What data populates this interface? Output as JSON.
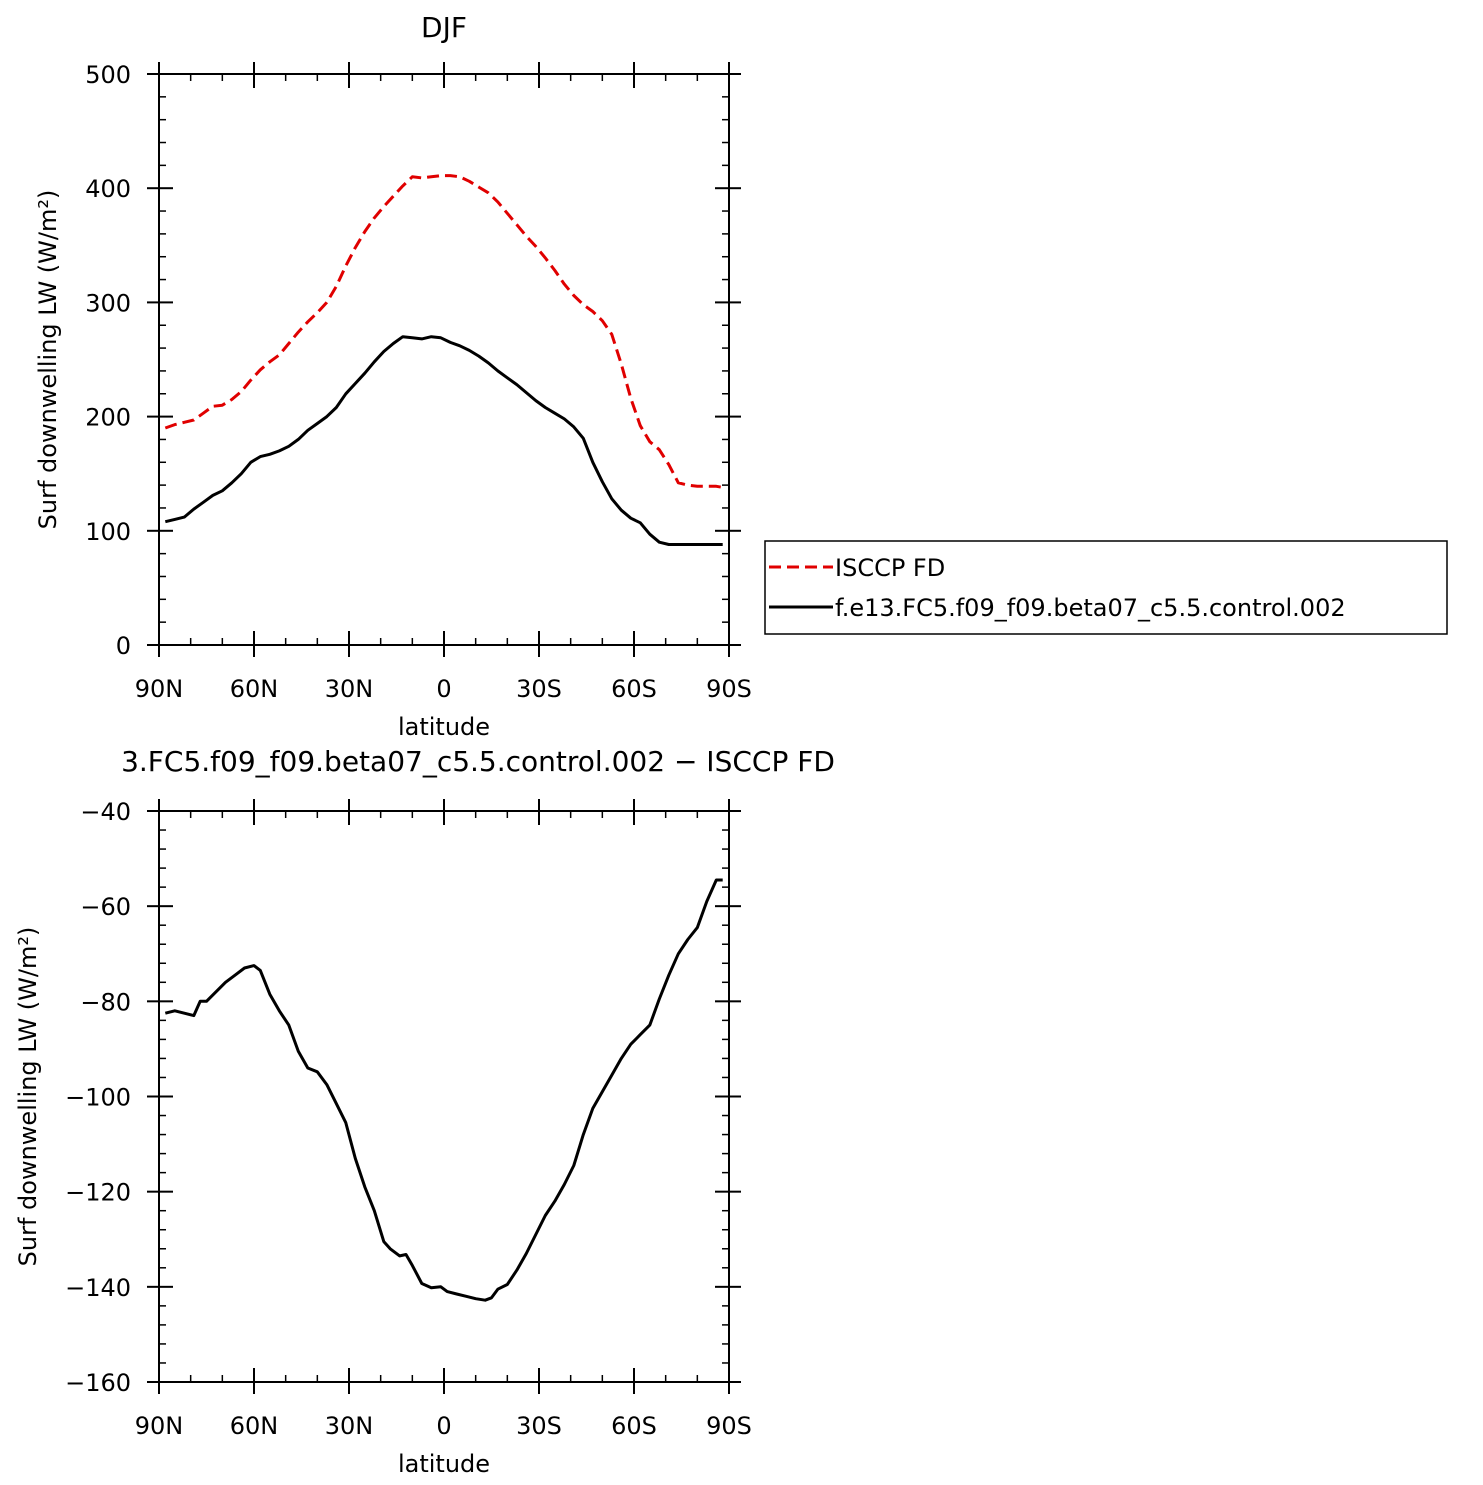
{
  "chart_data": [
    {
      "type": "line",
      "title": "DJF",
      "xlabel": "latitude",
      "ylabel": "Surf downwelling LW (W/m²)",
      "xlim": [
        -90,
        90
      ],
      "ylim": [
        0,
        500
      ],
      "x_ticks": [
        -90,
        -60,
        -30,
        0,
        30,
        60,
        90
      ],
      "x_tick_labels": [
        "90N",
        "60N",
        "30N",
        "0",
        "30S",
        "60S",
        "90S"
      ],
      "y_ticks": [
        0,
        100,
        200,
        300,
        400,
        500
      ],
      "y_tick_labels": [
        "0",
        "100",
        "200",
        "300",
        "400",
        "500"
      ],
      "legend_position": "right",
      "grid": false,
      "series": [
        {
          "name": "ISCCP FD",
          "color": "#e00000",
          "style": "dashed",
          "x": [
            -88,
            -85,
            -82,
            -79,
            -76,
            -73,
            -70,
            -67,
            -64,
            -61,
            -58,
            -55,
            -52,
            -49,
            -46,
            -43,
            -40,
            -37,
            -34,
            -31,
            -28,
            -25,
            -22,
            -19,
            -16,
            -13,
            -10,
            -7,
            -4,
            -1,
            2,
            5,
            8,
            11,
            14,
            17,
            20,
            23,
            26,
            29,
            32,
            35,
            38,
            41,
            44,
            47,
            50,
            53,
            56,
            59,
            62,
            65,
            68,
            71,
            74,
            77,
            80,
            83,
            86,
            88
          ],
          "y": [
            190,
            193,
            195,
            197,
            203,
            209,
            210,
            215,
            222,
            232,
            241,
            248,
            254,
            264,
            274,
            283,
            291,
            300,
            314,
            332,
            348,
            362,
            374,
            384,
            393,
            402,
            410,
            409,
            410,
            411,
            411,
            410,
            406,
            401,
            396,
            388,
            378,
            368,
            358,
            349,
            339,
            328,
            316,
            306,
            298,
            292,
            284,
            272,
            246,
            216,
            192,
            178,
            171,
            158,
            142,
            140,
            139,
            139,
            139,
            138
          ]
        },
        {
          "name": "f.e13.FC5.f09_f09.beta07_c5.5.control.002",
          "color": "#000000",
          "style": "solid",
          "x": [
            -88,
            -85,
            -82,
            -79,
            -76,
            -73,
            -70,
            -67,
            -64,
            -61,
            -58,
            -55,
            -52,
            -49,
            -46,
            -43,
            -40,
            -37,
            -34,
            -31,
            -28,
            -25,
            -22,
            -19,
            -16,
            -13,
            -10,
            -7,
            -4,
            -1,
            2,
            5,
            8,
            11,
            14,
            17,
            20,
            23,
            26,
            29,
            32,
            35,
            38,
            41,
            44,
            47,
            50,
            53,
            56,
            59,
            62,
            65,
            68,
            71,
            74,
            77,
            80,
            83,
            86,
            88
          ],
          "y": [
            108,
            110,
            112,
            119,
            125,
            131,
            135,
            142,
            150,
            160,
            165,
            167,
            170,
            174,
            180,
            188,
            194,
            200,
            208,
            220,
            229,
            238,
            248,
            257,
            264,
            270,
            269,
            268,
            270,
            269,
            265,
            262,
            258,
            253,
            247,
            240,
            234,
            228,
            221,
            214,
            208,
            203,
            198,
            191,
            181,
            160,
            143,
            128,
            118,
            111,
            107,
            97,
            90,
            88,
            88,
            88,
            88,
            88,
            88,
            88
          ]
        }
      ]
    },
    {
      "type": "line",
      "title": "3.FC5.f09_f09.beta07_c5.5.control.002 − ISCCP FD",
      "xlabel": "latitude",
      "ylabel": "Surf downwelling LW (W/m²)",
      "xlim": [
        -90,
        90
      ],
      "ylim": [
        -160,
        -40
      ],
      "x_ticks": [
        -90,
        -60,
        -30,
        0,
        30,
        60,
        90
      ],
      "x_tick_labels": [
        "90N",
        "60N",
        "30N",
        "0",
        "30S",
        "60S",
        "90S"
      ],
      "y_ticks": [
        -160,
        -140,
        -120,
        -100,
        -80,
        -60,
        -40
      ],
      "y_tick_labels": [
        "−160",
        "−140",
        "−120",
        "−100",
        "−80",
        "−60",
        "−40"
      ],
      "grid": false,
      "series": [
        {
          "color": "#000000",
          "style": "solid",
          "x": [
            -88,
            -85,
            -82,
            -79,
            -77,
            -75,
            -72,
            -69,
            -66,
            -63,
            -60,
            -58,
            -55,
            -52,
            -49,
            -46,
            -43,
            -40,
            -37,
            -34,
            -31,
            -28,
            -25,
            -22,
            -19,
            -17,
            -14,
            -12,
            -10,
            -7,
            -4,
            -1,
            1,
            4,
            7,
            10,
            13,
            15,
            17,
            20,
            23,
            26,
            29,
            32,
            35,
            38,
            41,
            44,
            47,
            50,
            53,
            56,
            59,
            62,
            65,
            68,
            71,
            74,
            77,
            80,
            83,
            86,
            88
          ],
          "y": [
            -82.5,
            -82,
            -82.5,
            -83,
            -80,
            -80,
            -78,
            -76,
            -74.5,
            -73,
            -72.5,
            -73.5,
            -78.5,
            -82,
            -85,
            -90.5,
            -94,
            -94.8,
            -97.5,
            -101.5,
            -105.5,
            -113,
            -119,
            -124,
            -130.5,
            -132,
            -133.5,
            -133.2,
            -135.5,
            -139.3,
            -140.2,
            -140,
            -141,
            -141.5,
            -142,
            -142.5,
            -142.8,
            -142.3,
            -140.5,
            -139.5,
            -136.5,
            -133,
            -129,
            -125,
            -122,
            -118.5,
            -114.5,
            -108,
            -102.5,
            -99,
            -95.5,
            -92,
            -89,
            -87,
            -85,
            -79.5,
            -74.5,
            -70,
            -67,
            -64.5,
            -59,
            -54.5,
            -54.5
          ]
        }
      ]
    }
  ]
}
